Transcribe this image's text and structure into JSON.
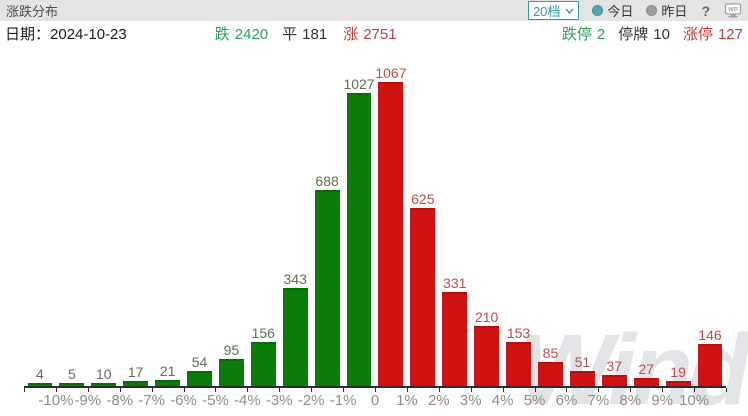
{
  "header": {
    "title": "涨跌分布",
    "bins_dropdown": {
      "value": "20档"
    },
    "radios": [
      {
        "label": "今日",
        "selected": true,
        "dot_color": "#57a4b6"
      },
      {
        "label": "昨日",
        "selected": false,
        "dot_color": "#9e9e9e"
      }
    ],
    "help_label": "?",
    "wp_icon_text": "WP"
  },
  "infobar": {
    "date_label": "日期：",
    "date_value": "2024-10-23",
    "stats": [
      {
        "label": "跌",
        "value": "2420",
        "type": "down"
      },
      {
        "label": "平",
        "value": "181",
        "type": "flat"
      },
      {
        "label": "涨",
        "value": "2751",
        "type": "up"
      },
      {
        "label": "跌停",
        "value": "2",
        "type": "down"
      },
      {
        "label": "停牌",
        "value": "10",
        "type": "flat"
      },
      {
        "label": "涨停",
        "value": "127",
        "type": "up"
      }
    ]
  },
  "chart_data": {
    "type": "bar",
    "title": "涨跌分布",
    "values": [
      4,
      5,
      10,
      17,
      21,
      54,
      95,
      156,
      343,
      688,
      1027,
      1067,
      625,
      331,
      210,
      153,
      85,
      51,
      37,
      27,
      19,
      146
    ],
    "directions": [
      "down",
      "down",
      "down",
      "down",
      "down",
      "down",
      "down",
      "down",
      "down",
      "down",
      "down",
      "up",
      "up",
      "up",
      "up",
      "up",
      "up",
      "up",
      "up",
      "up",
      "up",
      "up"
    ],
    "x_tick_labels": [
      "-10%",
      "-9%",
      "-8%",
      "-7%",
      "-6%",
      "-5%",
      "-4%",
      "-3%",
      "-2%",
      "-1%",
      "0",
      "1%",
      "2%",
      "3%",
      "4%",
      "5%",
      "6%",
      "7%",
      "8%",
      "9%",
      "10%"
    ],
    "ylim": [
      0,
      1120
    ],
    "grid": false,
    "legend_position": "none",
    "palette": {
      "down_bar": "#0a7c0a",
      "up_bar": "#cf1212",
      "down_label": "#5a7350",
      "up_label": "#c14b4b",
      "axis": "#2e2e2e",
      "tick_label": "#8c8c8c"
    }
  },
  "watermark": "Wind",
  "colors": {
    "header_bg": "#e4e4e4",
    "teal": "#2d9da0",
    "stat_down": "#2e9e54",
    "stat_up": "#c43c3c"
  }
}
